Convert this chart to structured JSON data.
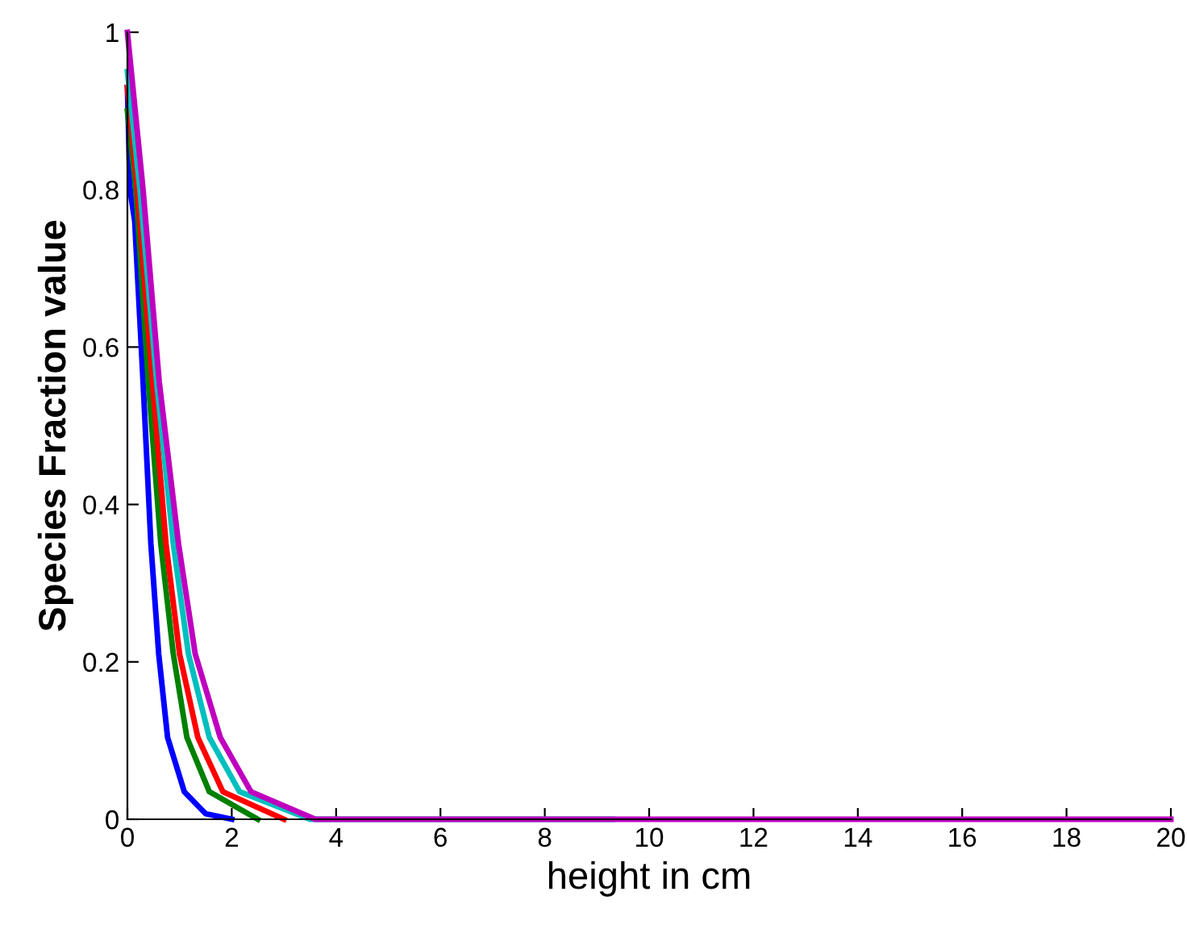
{
  "chart_data": {
    "type": "line",
    "xlabel": "height in cm",
    "ylabel": "Species Fraction value",
    "xlim": [
      0,
      20
    ],
    "ylim": [
      0,
      1
    ],
    "xticks": [
      0,
      2,
      4,
      6,
      8,
      10,
      12,
      14,
      16,
      18,
      20
    ],
    "yticks": [
      0,
      0.2,
      0.4,
      0.6,
      0.8,
      1
    ],
    "grid": false,
    "legend": false,
    "marker": "none",
    "line_style": "solid",
    "series": [
      {
        "color": "#0000ff",
        "x": [
          0,
          0.05,
          0.14,
          0.3,
          0.45,
          0.6,
          0.77,
          1.09,
          1.5,
          2
        ],
        "values": [
          0.93,
          0.8,
          0.76,
          0.556,
          0.35,
          0.21,
          0.104,
          0.035,
          0.007,
          0
        ]
      },
      {
        "color": "#008000",
        "x": [
          0,
          0.16,
          0.4,
          0.64,
          0.88,
          1.14,
          1.57,
          2.5
        ],
        "values": [
          0.9,
          0.8,
          0.556,
          0.35,
          0.21,
          0.104,
          0.035,
          0
        ]
      },
      {
        "color": "#ff0000",
        "x": [
          0,
          0.19,
          0.48,
          0.74,
          1.0,
          1.35,
          1.83,
          3
        ],
        "values": [
          0.93,
          0.8,
          0.556,
          0.35,
          0.21,
          0.104,
          0.035,
          0
        ]
      },
      {
        "color": "#00bfbf",
        "x": [
          0,
          0.24,
          0.56,
          0.88,
          1.17,
          1.57,
          2.15,
          3.5,
          9.3
        ],
        "values": [
          0.95,
          0.8,
          0.556,
          0.35,
          0.21,
          0.104,
          0.035,
          0,
          0
        ]
      },
      {
        "color": "#bf00bf",
        "x": [
          0,
          0.3,
          0.61,
          0.98,
          1.3,
          1.78,
          2.37,
          3.6,
          20
        ],
        "values": [
          1.0,
          0.8,
          0.556,
          0.35,
          0.21,
          0.104,
          0.035,
          0,
          0
        ]
      }
    ]
  }
}
